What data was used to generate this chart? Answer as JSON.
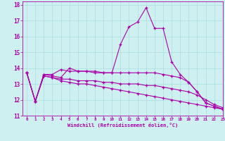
{
  "xlabel": "Windchill (Refroidissement éolien,°C)",
  "xlim": [
    -0.5,
    23
  ],
  "ylim": [
    11,
    18.2
  ],
  "xticks": [
    0,
    1,
    2,
    3,
    4,
    5,
    6,
    7,
    8,
    9,
    10,
    11,
    12,
    13,
    14,
    15,
    16,
    17,
    18,
    19,
    20,
    21,
    22,
    23
  ],
  "yticks": [
    11,
    12,
    13,
    14,
    15,
    16,
    17,
    18
  ],
  "bg_color": "#cff0f0",
  "grid_color": "#aadddd",
  "line_color": "#aa00aa",
  "lines": [
    [
      13.7,
      11.9,
      13.6,
      13.6,
      13.9,
      13.8,
      13.8,
      13.8,
      13.8,
      13.7,
      13.7,
      15.5,
      16.6,
      16.9,
      17.8,
      16.5,
      16.5,
      14.4,
      13.6,
      13.1,
      12.5,
      11.8,
      11.6,
      11.4
    ],
    [
      13.7,
      11.9,
      13.6,
      13.5,
      13.4,
      14.0,
      13.8,
      13.8,
      13.7,
      13.7,
      13.7,
      13.7,
      13.7,
      13.7,
      13.7,
      13.7,
      13.6,
      13.5,
      13.4,
      13.1,
      12.5,
      11.8,
      11.6,
      11.4
    ],
    [
      13.7,
      11.9,
      13.5,
      13.4,
      13.3,
      13.3,
      13.2,
      13.2,
      13.2,
      13.1,
      13.1,
      13.0,
      13.0,
      13.0,
      12.9,
      12.9,
      12.8,
      12.7,
      12.6,
      12.5,
      12.3,
      12.0,
      11.7,
      11.5
    ],
    [
      13.7,
      11.9,
      13.5,
      13.4,
      13.2,
      13.1,
      13.0,
      13.0,
      12.9,
      12.8,
      12.7,
      12.6,
      12.5,
      12.4,
      12.3,
      12.2,
      12.1,
      12.0,
      11.9,
      11.8,
      11.7,
      11.6,
      11.5,
      11.4
    ]
  ]
}
